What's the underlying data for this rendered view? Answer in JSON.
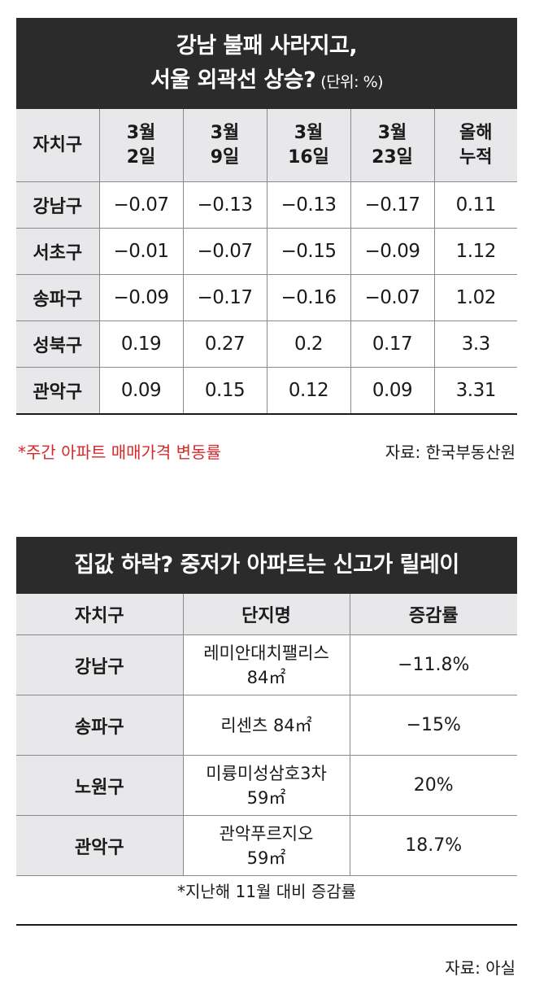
{
  "table1": {
    "title_line1": "강남 불패 사라지고,",
    "title_line2": "서울 외곽선 상승?",
    "unit": "(단위: %)",
    "corner": "자치구",
    "columns": [
      {
        "top": "3월",
        "bottom": "2일"
      },
      {
        "top": "3월",
        "bottom": "9일"
      },
      {
        "top": "3월",
        "bottom": "16일"
      },
      {
        "top": "3월",
        "bottom": "23일"
      },
      {
        "top": "올해",
        "bottom": "누적"
      }
    ],
    "rows": [
      {
        "district": "강남구",
        "values": [
          "−0.07",
          "−0.13",
          "−0.13",
          "−0.17",
          "0.11"
        ]
      },
      {
        "district": "서초구",
        "values": [
          "−0.01",
          "−0.07",
          "−0.15",
          "−0.09",
          "1.12"
        ]
      },
      {
        "district": "송파구",
        "values": [
          "−0.09",
          "−0.17",
          "−0.16",
          "−0.07",
          "1.02"
        ]
      },
      {
        "district": "성북구",
        "values": [
          "0.19",
          "0.27",
          "0.2",
          "0.17",
          "3.3"
        ]
      },
      {
        "district": "관악구",
        "values": [
          "0.09",
          "0.15",
          "0.12",
          "0.09",
          "3.31"
        ]
      }
    ],
    "note": "*주간 아파트 매매가격 변동률",
    "source": "자료: 한국부동산원"
  },
  "table2": {
    "title": "집값 하락? 중저가 아파트는 신고가 릴레이",
    "headers": [
      "자치구",
      "단지명",
      "증감률"
    ],
    "rows": [
      {
        "district": "강남구",
        "complex_line1": "레미안대치팰리스",
        "complex_line2": "84㎡",
        "rate": "−11.8%"
      },
      {
        "district": "송파구",
        "complex_line1": "리센츠 84㎡",
        "complex_line2": "",
        "rate": "−15%"
      },
      {
        "district": "노원구",
        "complex_line1": "미륭미성삼호3차",
        "complex_line2": "59㎡",
        "rate": "20%"
      },
      {
        "district": "관악구",
        "complex_line1": "관악푸르지오",
        "complex_line2": "59㎡",
        "rate": "18.7%"
      }
    ],
    "note": "*지난해 11월 대비 증감률",
    "source": "자료: 아실"
  },
  "colors": {
    "header_bg": "#2b2b2b",
    "cell_shade": "#e8e8ea",
    "note_red": "#d6282c"
  }
}
